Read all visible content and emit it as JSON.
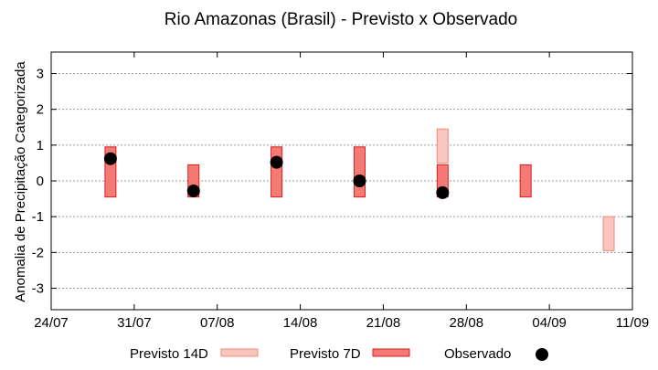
{
  "chart_data": {
    "type": "range-bar",
    "title": "Rio Amazonas (Brasil) - Previsto x Observado",
    "xlabel": "",
    "ylabel": "Anomalia de Precipitação Categorizada",
    "x_ticks": [
      "24/07",
      "31/07",
      "07/08",
      "14/08",
      "21/08",
      "28/08",
      "04/09",
      "11/09"
    ],
    "x_tick_days": [
      0,
      7,
      14,
      21,
      28,
      35,
      42,
      49
    ],
    "y_ticks": [
      "3",
      "2",
      "1",
      "0",
      "-1",
      "-2",
      "-3"
    ],
    "y_tick_values": [
      3,
      2,
      1,
      0,
      -1,
      -2,
      -3
    ],
    "ylim": [
      -3.6,
      3.6
    ],
    "xlim_days": [
      0,
      49
    ],
    "grid": true,
    "legend_position": "bottom",
    "colors": {
      "previsto_14d_fill": "#f9c6bd",
      "previsto_14d_stroke": "#f08a80",
      "previsto_7d_fill": "#f47a76",
      "previsto_7d_stroke": "#d81f1f",
      "observado": "#000000",
      "grid": "#9a9a9a"
    },
    "legend": {
      "previsto_14d": "Previsto 14D",
      "previsto_7d": "Previsto 7D",
      "observado": "Observado"
    },
    "series": [
      {
        "name": "Previsto 14D",
        "bars": [
          {
            "day": 33,
            "low": 0.5,
            "high": 1.45
          },
          {
            "day": 47,
            "low": -1.95,
            "high": -1.0
          }
        ]
      },
      {
        "name": "Previsto 7D",
        "bars": [
          {
            "day": 5,
            "low": -0.45,
            "high": 0.95
          },
          {
            "day": 12,
            "low": -0.45,
            "high": 0.45
          },
          {
            "day": 19,
            "low": -0.45,
            "high": 0.95
          },
          {
            "day": 26,
            "low": -0.45,
            "high": 0.95
          },
          {
            "day": 33,
            "low": -0.45,
            "high": 0.45
          },
          {
            "day": 40,
            "low": -0.45,
            "high": 0.45
          }
        ]
      },
      {
        "name": "Observado",
        "points": [
          {
            "day": 5,
            "value": 0.62
          },
          {
            "day": 12,
            "value": -0.28
          },
          {
            "day": 19,
            "value": 0.52
          },
          {
            "day": 26,
            "value": 0.0
          },
          {
            "day": 33,
            "value": -0.33
          }
        ]
      }
    ]
  }
}
